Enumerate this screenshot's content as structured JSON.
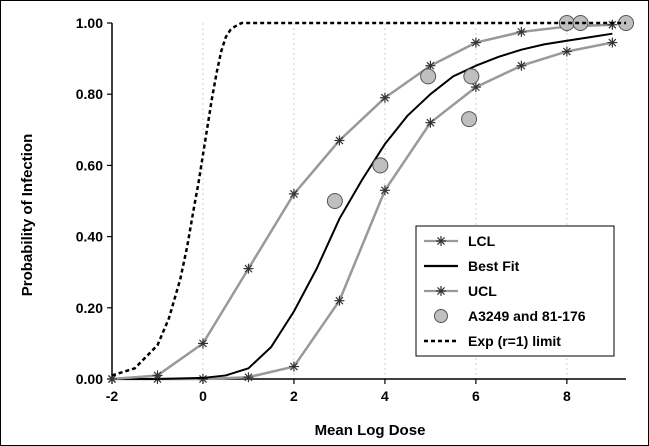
{
  "chart_data": {
    "type": "line",
    "xlabel": "Mean Log Dose",
    "ylabel": "Probability of Infection",
    "xlim": [
      -2,
      9.3
    ],
    "ylim": [
      0,
      1
    ],
    "x_ticks": [
      -2,
      0,
      2,
      4,
      6,
      8
    ],
    "y_ticks": [
      0,
      0.2,
      0.4,
      0.6,
      0.8,
      1.0
    ],
    "x_tick_labels": [
      "-2",
      "0",
      "2",
      "4",
      "6",
      "8"
    ],
    "y_tick_labels": [
      "0.00",
      "0.20",
      "0.40",
      "0.60",
      "0.80",
      "1.00"
    ],
    "grid": "vertical",
    "legend_position": "bottom-right",
    "series": [
      {
        "name": "LCL",
        "style": "gray line with star markers",
        "color": "#999999",
        "x": [
          -2,
          -1,
          0,
          1,
          2,
          3,
          4,
          5,
          6,
          7,
          8,
          9
        ],
        "y": [
          0.0,
          0.0,
          0.0,
          0.005,
          0.035,
          0.22,
          0.53,
          0.72,
          0.82,
          0.88,
          0.92,
          0.945
        ]
      },
      {
        "name": "Best Fit",
        "style": "black solid line",
        "color": "#000000",
        "x": [
          -2,
          -1,
          0,
          0.5,
          1,
          1.5,
          2,
          2.5,
          3,
          3.5,
          4,
          4.5,
          5,
          5.5,
          6,
          6.5,
          7,
          7.5,
          8,
          8.5,
          9
        ],
        "y": [
          0.0,
          0.0,
          0.003,
          0.01,
          0.03,
          0.09,
          0.19,
          0.31,
          0.45,
          0.56,
          0.66,
          0.74,
          0.8,
          0.85,
          0.88,
          0.905,
          0.925,
          0.94,
          0.95,
          0.96,
          0.97
        ]
      },
      {
        "name": "UCL",
        "style": "gray line with star markers",
        "color": "#999999",
        "x": [
          -2,
          -1,
          0,
          1,
          2,
          3,
          4,
          5,
          6,
          7,
          8,
          9
        ],
        "y": [
          0.0,
          0.01,
          0.1,
          0.31,
          0.52,
          0.67,
          0.79,
          0.88,
          0.945,
          0.975,
          0.99,
          0.995
        ]
      },
      {
        "name": "A3249 and 81-176",
        "style": "gray circle markers",
        "color": "#bfbfbf",
        "x": [
          2.9,
          3.9,
          4.95,
          5.9,
          5.85,
          8.0,
          8.3,
          9.3
        ],
        "y": [
          0.5,
          0.6,
          0.85,
          0.85,
          0.73,
          1.0,
          1.0,
          1.0
        ]
      },
      {
        "name": "Exp (r=1) limit",
        "style": "black dashed line",
        "color": "#000000",
        "x": [
          -2,
          -1.5,
          -1,
          -0.75,
          -0.5,
          -0.35,
          -0.2,
          -0.1,
          0,
          0.1,
          0.2,
          0.3,
          0.4,
          0.5,
          0.6,
          0.7,
          0.85,
          1,
          9.3
        ],
        "y": [
          0.01,
          0.03,
          0.095,
          0.17,
          0.28,
          0.37,
          0.48,
          0.55,
          0.63,
          0.71,
          0.79,
          0.86,
          0.92,
          0.96,
          0.98,
          0.99,
          1.0,
          1.0,
          1.0
        ]
      }
    ]
  }
}
